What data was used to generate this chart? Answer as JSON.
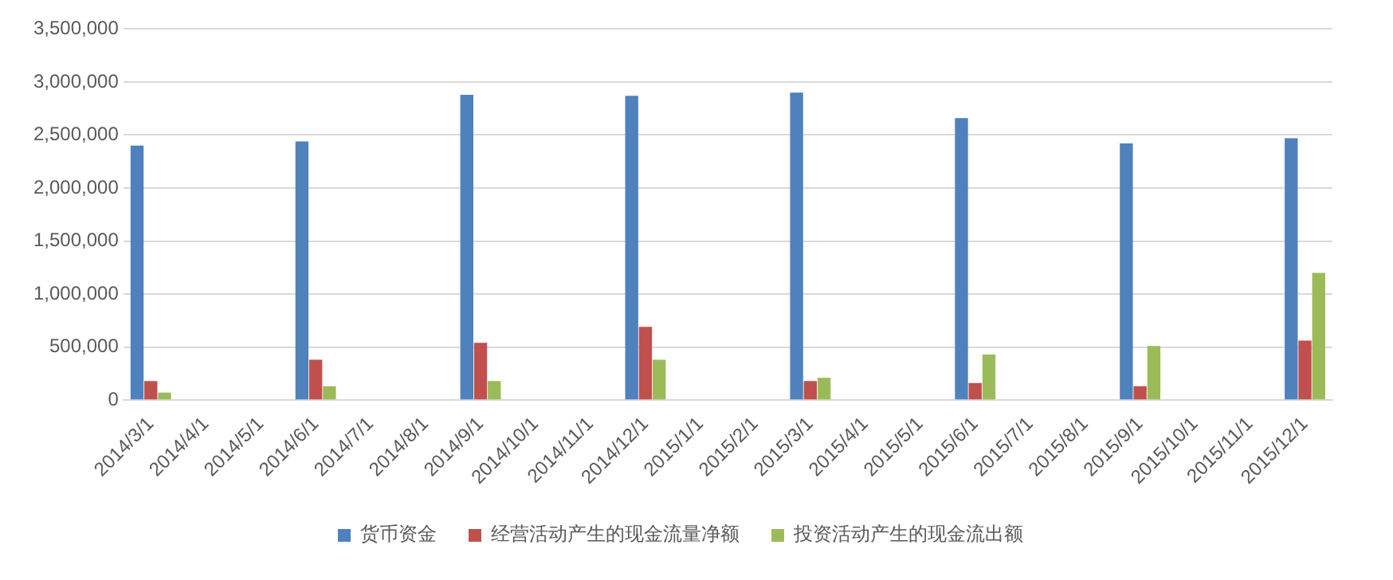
{
  "chart_data": {
    "type": "bar",
    "categories": [
      "2014/3/1",
      "2014/4/1",
      "2014/5/1",
      "2014/6/1",
      "2014/7/1",
      "2014/8/1",
      "2014/9/1",
      "2014/10/1",
      "2014/11/1",
      "2014/12/1",
      "2015/1/1",
      "2015/2/1",
      "2015/3/1",
      "2015/4/1",
      "2015/5/1",
      "2015/6/1",
      "2015/7/1",
      "2015/8/1",
      "2015/9/1",
      "2015/10/1",
      "2015/11/1",
      "2015/12/1"
    ],
    "series": [
      {
        "name": "货币资金",
        "color": "#4f81bd",
        "values": [
          2400000,
          null,
          null,
          2440000,
          null,
          null,
          2880000,
          null,
          null,
          2870000,
          null,
          null,
          2900000,
          null,
          null,
          2660000,
          null,
          null,
          2420000,
          null,
          null,
          2470000
        ]
      },
      {
        "name": "经营活动产生的现金流量净额",
        "color": "#c0504d",
        "values": [
          180000,
          null,
          null,
          380000,
          null,
          null,
          540000,
          null,
          null,
          690000,
          null,
          null,
          180000,
          null,
          null,
          160000,
          null,
          null,
          130000,
          null,
          null,
          560000
        ]
      },
      {
        "name": "投资活动产生的现金流出额",
        "color": "#9bbb59",
        "values": [
          70000,
          null,
          null,
          130000,
          null,
          null,
          180000,
          null,
          null,
          380000,
          null,
          null,
          210000,
          null,
          null,
          430000,
          null,
          null,
          510000,
          null,
          null,
          1200000
        ]
      }
    ],
    "ylim": [
      0,
      3500000
    ],
    "yticks": [
      0,
      {
        "value": 500000,
        "label": "500,000"
      },
      {
        "value": 1000000,
        "label": "1,000,000"
      },
      {
        "value": 1500000,
        "label": "1,500,000"
      },
      {
        "value": 2000000,
        "label": "2,000,000"
      },
      {
        "value": 2500000,
        "label": "2,500,000"
      },
      {
        "value": 3000000,
        "label": "3,000,000"
      },
      {
        "value": 3500000,
        "label": "3,500,000"
      }
    ],
    "grid": "y",
    "legend": "bottom"
  }
}
